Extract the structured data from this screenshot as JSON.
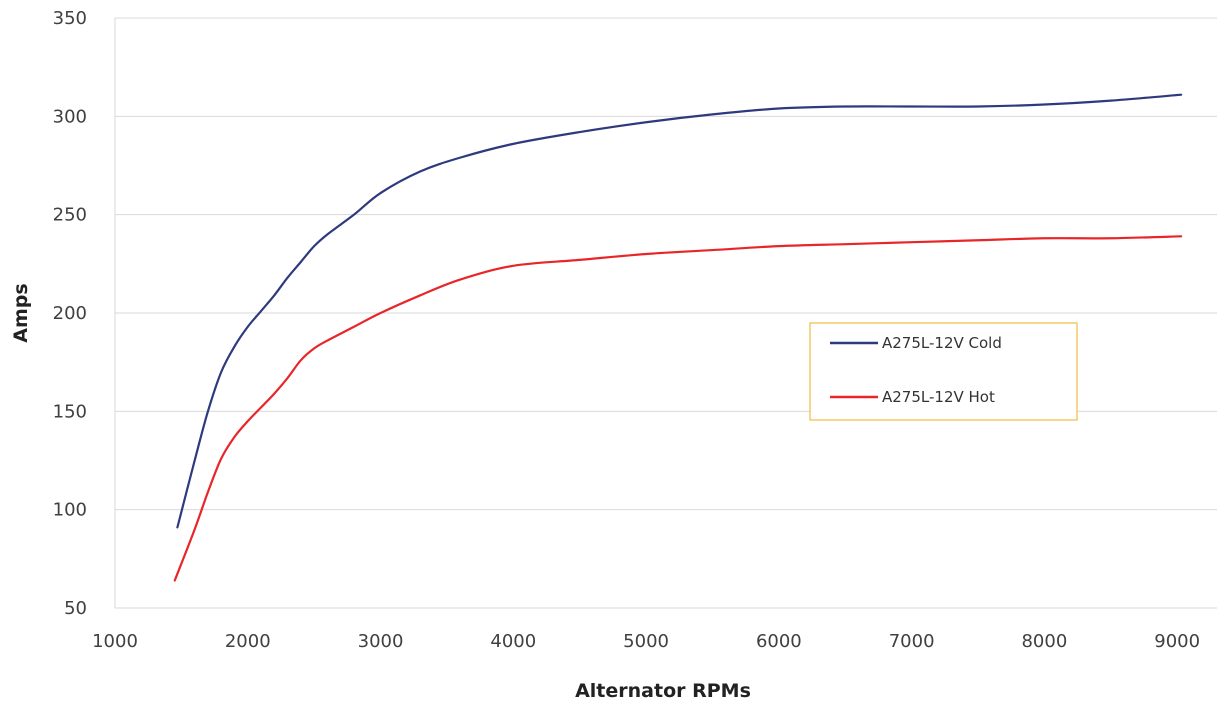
{
  "chart_data": {
    "type": "line",
    "title": "",
    "xlabel": "Alternator RPMs",
    "ylabel": "Amps",
    "xlim": [
      1000,
      9300
    ],
    "ylim": [
      50,
      350
    ],
    "xticks": [
      1000,
      2000,
      3000,
      4000,
      5000,
      6000,
      7000,
      8000,
      9000
    ],
    "yticks": [
      50,
      100,
      150,
      200,
      250,
      300,
      350
    ],
    "grid": "horizontal",
    "legend_position": "center-right",
    "legend_border_color": "#f2c14e",
    "series": [
      {
        "name": "A275L-12V Cold",
        "color": "#2e3a7e",
        "x": [
          1470,
          1600,
          1700,
          1800,
          1900,
          2000,
          2100,
          2200,
          2300,
          2400,
          2500,
          2600,
          2800,
          3000,
          3300,
          3600,
          4000,
          4500,
          5000,
          5500,
          6000,
          6500,
          7000,
          7500,
          8000,
          8500,
          9030
        ],
        "y": [
          91,
          125,
          150,
          170,
          183,
          193,
          201,
          209,
          218,
          226,
          234,
          240,
          250,
          261,
          272,
          279,
          286,
          292,
          297,
          301,
          304,
          305,
          305,
          305,
          306,
          308,
          311
        ]
      },
      {
        "name": "A275L-12V Hot",
        "color": "#e8262a",
        "x": [
          1450,
          1600,
          1700,
          1800,
          1900,
          2000,
          2100,
          2200,
          2300,
          2400,
          2500,
          2600,
          2800,
          3000,
          3300,
          3600,
          4000,
          4500,
          5000,
          5500,
          6000,
          6500,
          7000,
          7500,
          8000,
          8500,
          9030
        ],
        "y": [
          64,
          90,
          109,
          126,
          137,
          145,
          152,
          159,
          167,
          176,
          182,
          186,
          193,
          200,
          209,
          217,
          224,
          227,
          230,
          232,
          234,
          235,
          236,
          237,
          238,
          238,
          239
        ]
      }
    ]
  }
}
